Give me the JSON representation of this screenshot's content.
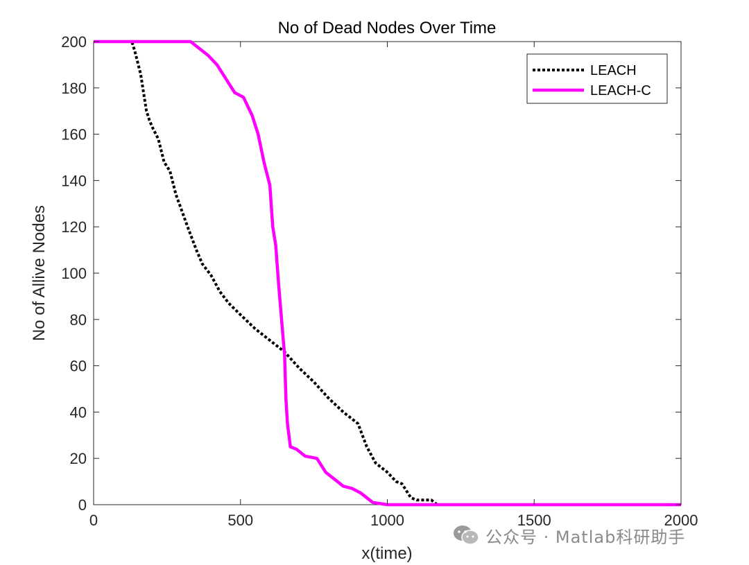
{
  "chart_data": {
    "type": "line",
    "title": "No of Dead Nodes Over Time",
    "xlabel": "x(time)",
    "ylabel": "No of Allive Nodes",
    "xlim": [
      0,
      2000
    ],
    "ylim": [
      0,
      200
    ],
    "xticks": [
      0,
      500,
      1000,
      1500,
      2000
    ],
    "yticks": [
      0,
      20,
      40,
      60,
      80,
      100,
      120,
      140,
      160,
      180,
      200
    ],
    "grid": false,
    "legend_position": "top-right",
    "series": [
      {
        "name": "LEACH",
        "color": "#000000",
        "style": "dotted",
        "x": [
          0,
          130,
          140,
          160,
          180,
          190,
          200,
          220,
          240,
          260,
          280,
          300,
          320,
          350,
          370,
          400,
          430,
          460,
          500,
          550,
          600,
          650,
          700,
          750,
          800,
          850,
          900,
          930,
          960,
          1000,
          1030,
          1050,
          1080,
          1100,
          1150,
          1170,
          1200,
          2000
        ],
        "y": [
          200,
          200,
          196,
          186,
          170,
          166,
          163,
          158,
          148,
          144,
          134,
          127,
          120,
          110,
          104,
          99,
          92,
          87,
          82,
          76,
          71,
          66,
          59,
          53,
          46,
          40,
          35,
          25,
          18,
          14,
          10,
          9,
          3,
          2,
          2,
          0,
          0,
          0
        ]
      },
      {
        "name": "LEACH-C",
        "color": "#ff00ff",
        "style": "solid",
        "x": [
          0,
          330,
          360,
          390,
          420,
          450,
          480,
          510,
          540,
          560,
          580,
          600,
          610,
          620,
          630,
          640,
          645,
          650,
          655,
          660,
          670,
          690,
          720,
          760,
          790,
          810,
          850,
          880,
          910,
          950,
          1000,
          1050,
          2000
        ],
        "y": [
          200,
          200,
          197,
          194,
          190,
          184,
          178,
          176,
          168,
          160,
          148,
          138,
          120,
          112,
          95,
          80,
          72,
          65,
          45,
          35,
          25,
          24,
          21,
          20,
          14,
          12,
          8,
          7,
          5,
          1,
          0,
          0,
          0
        ]
      }
    ]
  },
  "watermark": {
    "text": "公众号 · Matlab科研助手",
    "icon": "wechat-icon"
  }
}
